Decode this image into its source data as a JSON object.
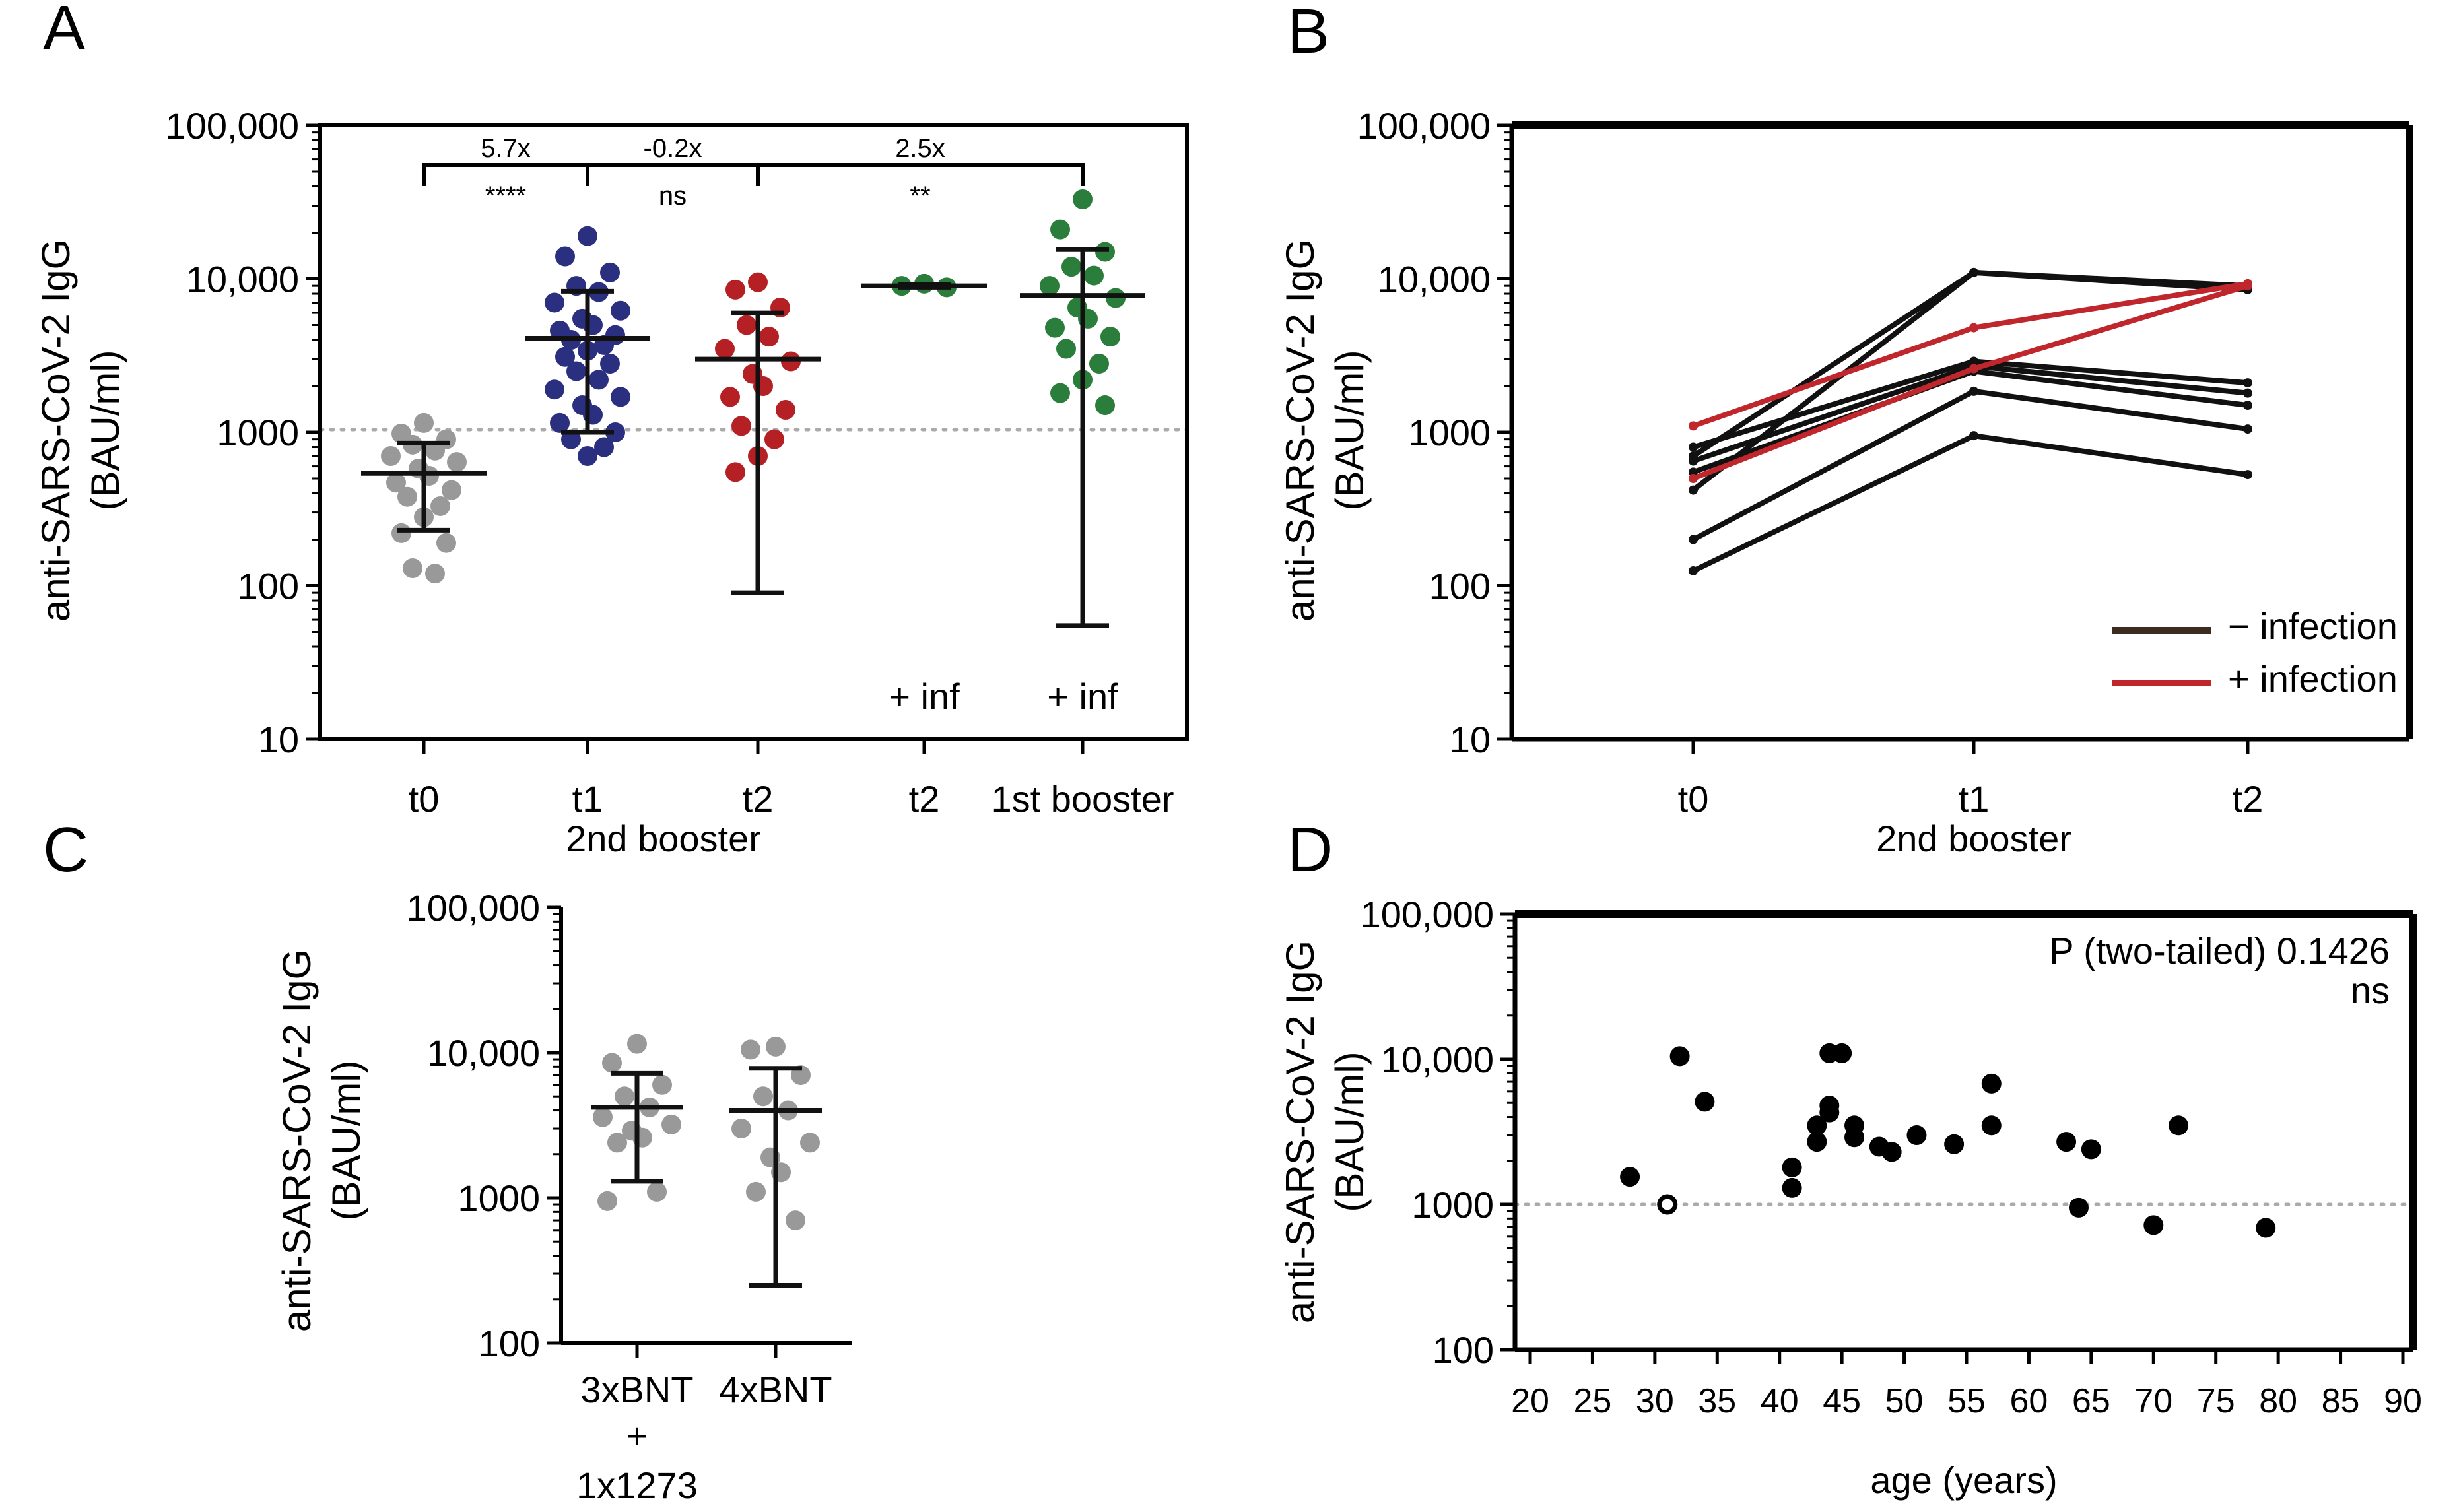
{
  "colors": {
    "grey": "#999999",
    "blue": "#2b2f80",
    "red": "#b52025",
    "green": "#2a7d3a",
    "black": "#111111",
    "brown": "#3d2b1f",
    "legend_red": "#c0272d",
    "dotted": "#aaaaaa"
  },
  "chart_data": [
    {
      "panel": "A",
      "type": "scatter",
      "yscale": "log",
      "ylim": [
        10,
        100000
      ],
      "yticks": [
        "10",
        "100",
        "1000",
        "10,000",
        "100,000"
      ],
      "ylabel": "anti-SARS-CoV-2 IgG",
      "ylabel2": "(BAU/ml)",
      "categories": [
        "t0",
        "t1",
        "t2",
        "t2",
        "1st booster"
      ],
      "group_label": "2nd booster",
      "reference_line": 1000,
      "annotations": [
        {
          "from": 0,
          "to": 1,
          "fold": "5.7x",
          "sig": "****"
        },
        {
          "from": 1,
          "to": 2,
          "fold": "-0.2x",
          "sig": "ns"
        },
        {
          "from": 2,
          "to": 4,
          "fold": "2.5x",
          "sig": "**"
        }
      ],
      "extra_labels": [
        {
          "category": 3,
          "text": "+ inf"
        },
        {
          "category": 4,
          "text": "+ inf"
        }
      ],
      "series": [
        {
          "name": "t0",
          "color": "grey",
          "mean": 540,
          "lower": 230,
          "upper": 850,
          "values": [
            1150,
            980,
            900,
            830,
            760,
            700,
            640,
            580,
            520,
            470,
            420,
            380,
            330,
            280,
            220,
            190,
            130,
            120
          ]
        },
        {
          "name": "t1",
          "color": "blue",
          "mean": 4100,
          "lower": 1000,
          "upper": 8300,
          "values": [
            19000,
            14000,
            11000,
            9000,
            8200,
            7000,
            6200,
            5500,
            5000,
            4600,
            4300,
            4000,
            3700,
            3400,
            3100,
            2800,
            2500,
            2200,
            1900,
            1700,
            1500,
            1300,
            1150,
            1000,
            900,
            800,
            700
          ]
        },
        {
          "name": "t2",
          "color": "red",
          "mean": 3000,
          "lower": 90,
          "upper": 6000,
          "values": [
            9500,
            8500,
            6500,
            5000,
            4200,
            3500,
            2900,
            2400,
            2000,
            1700,
            1400,
            1100,
            900,
            700,
            550
          ]
        },
        {
          "name": "t2 + inf",
          "color": "green",
          "mean": 9000,
          "lower": 8800,
          "upper": 9200,
          "values": [
            9300,
            9000,
            8800
          ]
        },
        {
          "name": "1st booster",
          "color": "green",
          "mean": 7800,
          "lower": 55,
          "upper": 15500,
          "values": [
            33000,
            21000,
            15000,
            12000,
            10500,
            9000,
            7500,
            6500,
            5500,
            4800,
            4200,
            3500,
            2800,
            2200,
            1800,
            1500
          ]
        }
      ]
    },
    {
      "panel": "B",
      "type": "line",
      "yscale": "log",
      "ylim": [
        10,
        100000
      ],
      "yticks": [
        "10",
        "100",
        "1000",
        "10,000",
        "100,000"
      ],
      "ylabel": "anti-SARS-CoV-2 IgG",
      "ylabel2": "(BAU/ml)",
      "x": [
        "t0",
        "t1",
        "t2"
      ],
      "group_label": "2nd booster",
      "legend": [
        {
          "label": "− infection",
          "color": "brown"
        },
        {
          "label": "+ infection",
          "color": "legend_red"
        }
      ],
      "series": [
        {
          "infection": false,
          "values": [
            420,
            11000,
            9000
          ]
        },
        {
          "infection": false,
          "values": [
            700,
            11000,
            8500
          ]
        },
        {
          "infection": false,
          "values": [
            800,
            2900,
            2100
          ]
        },
        {
          "infection": false,
          "values": [
            650,
            2700,
            1800
          ]
        },
        {
          "infection": false,
          "values": [
            550,
            2500,
            1500
          ]
        },
        {
          "infection": false,
          "values": [
            200,
            1850,
            1050
          ]
        },
        {
          "infection": false,
          "values": [
            125,
            950,
            530
          ]
        },
        {
          "infection": true,
          "values": [
            1100,
            4800,
            9300
          ]
        },
        {
          "infection": true,
          "values": [
            500,
            2600,
            9000
          ]
        }
      ]
    },
    {
      "panel": "C",
      "type": "scatter",
      "yscale": "log",
      "ylim": [
        100,
        100000
      ],
      "yticks": [
        "100",
        "1000",
        "10,000",
        "100,000"
      ],
      "ylabel": "anti-SARS-CoV-2 IgG",
      "ylabel2": "(BAU/ml)",
      "categories": [
        "3xBNT",
        "4xBNT"
      ],
      "category_sublines": [
        [
          "+",
          "1x1273"
        ],
        []
      ],
      "series": [
        {
          "name": "3xBNT + 1x1273",
          "color": "grey",
          "mean": 4200,
          "lower": 1300,
          "upper": 7200,
          "values": [
            11500,
            8500,
            6000,
            5000,
            4200,
            3600,
            3200,
            2900,
            2600,
            2400,
            1100,
            950
          ]
        },
        {
          "name": "4xBNT",
          "color": "grey",
          "mean": 4000,
          "lower": 250,
          "upper": 7800,
          "values": [
            11000,
            10500,
            7000,
            5000,
            4000,
            3000,
            2400,
            1900,
            1500,
            1100,
            700
          ]
        }
      ]
    },
    {
      "panel": "D",
      "type": "scatter",
      "yscale": "log",
      "ylim": [
        100,
        100000
      ],
      "yticks": [
        "100",
        "1000",
        "10,000",
        "100,000"
      ],
      "ylabel": "anti-SARS-CoV-2 IgG",
      "ylabel2": "(BAU/ml)",
      "xlim": [
        20,
        90
      ],
      "xticks": [
        "20",
        "25",
        "30",
        "35",
        "40",
        "45",
        "50",
        "55",
        "60",
        "65",
        "70",
        "75",
        "80",
        "85",
        "90"
      ],
      "xlabel": "age (years)",
      "reference_line": 1000,
      "stat_text": "P (two-tailed) 0.1426",
      "stat_sig": "ns",
      "points": [
        {
          "x": 28,
          "y": 1550
        },
        {
          "x": 31,
          "y": 1000,
          "open": true
        },
        {
          "x": 32,
          "y": 10500
        },
        {
          "x": 34,
          "y": 5100
        },
        {
          "x": 41,
          "y": 1800
        },
        {
          "x": 41,
          "y": 1300
        },
        {
          "x": 43,
          "y": 3500
        },
        {
          "x": 43,
          "y": 2700
        },
        {
          "x": 44,
          "y": 11000
        },
        {
          "x": 44,
          "y": 4800
        },
        {
          "x": 44,
          "y": 4300
        },
        {
          "x": 45,
          "y": 11000
        },
        {
          "x": 46,
          "y": 3500
        },
        {
          "x": 46,
          "y": 2900
        },
        {
          "x": 48,
          "y": 2500
        },
        {
          "x": 49,
          "y": 2300
        },
        {
          "x": 51,
          "y": 3000
        },
        {
          "x": 54,
          "y": 2600
        },
        {
          "x": 57,
          "y": 6800
        },
        {
          "x": 57,
          "y": 3500
        },
        {
          "x": 63,
          "y": 2700
        },
        {
          "x": 64,
          "y": 950
        },
        {
          "x": 65,
          "y": 2400
        },
        {
          "x": 70,
          "y": 720
        },
        {
          "x": 72,
          "y": 3500
        },
        {
          "x": 79,
          "y": 690
        }
      ]
    }
  ],
  "panel_labels": [
    "A",
    "B",
    "C",
    "D"
  ]
}
